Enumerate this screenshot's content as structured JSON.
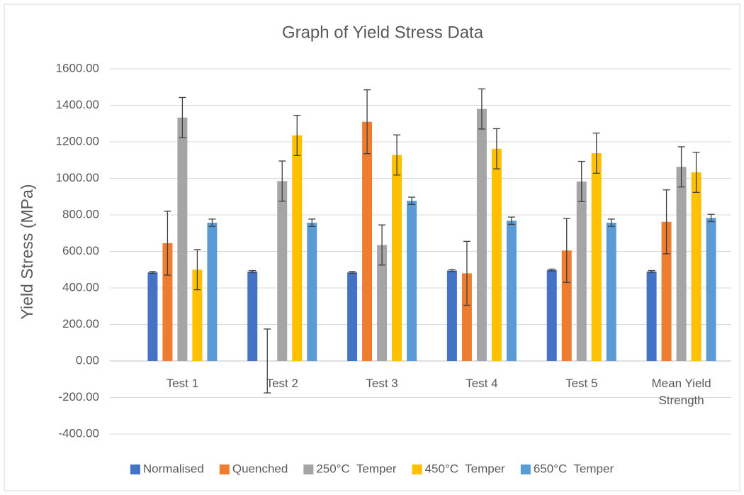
{
  "chart_data": {
    "type": "bar",
    "title": "Graph of Yield Stress Data",
    "y_label": "Yield Stress (MPa)",
    "categories": [
      "Test 1",
      "Test 2",
      "Test 3",
      "Test 4",
      "Test 5",
      "Mean Yield Strength"
    ],
    "series": [
      {
        "name": "Normalised",
        "color": "#4472c4",
        "values": [
          485,
          490,
          485,
          495,
          498,
          490
        ],
        "errors": [
          5,
          5,
          5,
          5,
          5,
          5
        ]
      },
      {
        "name": "Quenched",
        "color": "#ed7d31",
        "values": [
          645,
          0,
          1310,
          480,
          605,
          762
        ],
        "errors": [
          175,
          175,
          175,
          175,
          175,
          175
        ]
      },
      {
        "name": "250°C  Temper",
        "color": "#a5a5a5",
        "values": [
          1333,
          985,
          635,
          1380,
          983,
          1063
        ],
        "errors": [
          110,
          110,
          110,
          110,
          110,
          110
        ]
      },
      {
        "name": "450°C  Temper",
        "color": "#ffc000",
        "values": [
          500,
          1235,
          1128,
          1162,
          1138,
          1033
        ],
        "errors": [
          110,
          110,
          110,
          110,
          110,
          110
        ]
      },
      {
        "name": "650°C  Temper",
        "color": "#5b9bd5",
        "values": [
          757,
          757,
          877,
          768,
          757,
          783
        ],
        "errors": [
          20,
          20,
          20,
          20,
          20,
          20
        ]
      }
    ],
    "ylim": [
      -400,
      1600
    ],
    "yticks": [
      {
        "value": -400,
        "label": "-400.00"
      },
      {
        "value": -200,
        "label": "-200.00"
      },
      {
        "value": 0,
        "label": "0.00"
      },
      {
        "value": 200,
        "label": "200.00"
      },
      {
        "value": 400,
        "label": "400.00"
      },
      {
        "value": 600,
        "label": "600.00"
      },
      {
        "value": 800,
        "label": "800.00"
      },
      {
        "value": 1000,
        "label": "1000.00"
      },
      {
        "value": 1200,
        "label": "1200.00"
      },
      {
        "value": 1400,
        "label": "1400.00"
      },
      {
        "value": 1600,
        "label": "1600.00"
      }
    ],
    "grid": true,
    "legend": "bottom"
  }
}
